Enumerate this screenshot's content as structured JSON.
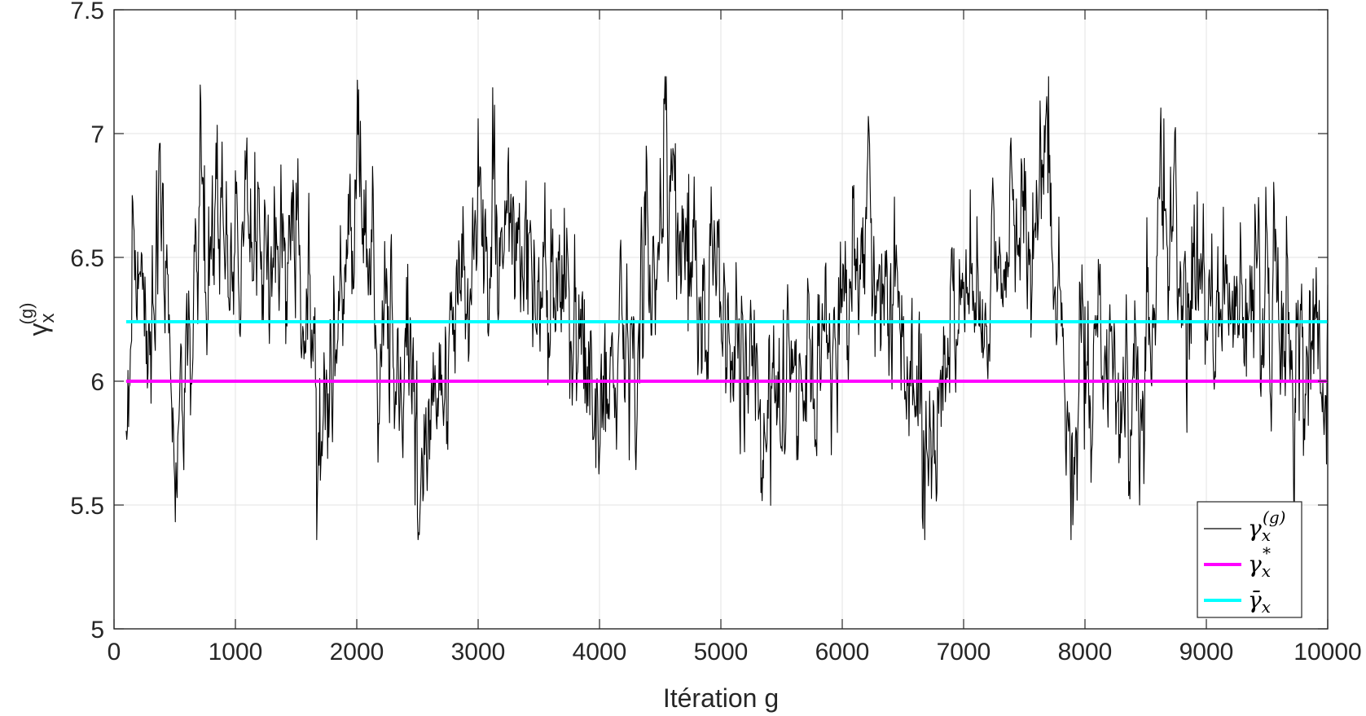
{
  "chart_data": {
    "type": "line",
    "title": "",
    "xlabel": "Itération g",
    "ylabel": "γ",
    "ylabel_sub": "x",
    "ylabel_sup": "(g)",
    "xlim": [
      0,
      10000
    ],
    "ylim": [
      5,
      7.5
    ],
    "x_ticks": [
      "0",
      "1000",
      "2000",
      "3000",
      "4000",
      "5000",
      "6000",
      "7000",
      "8000",
      "9000",
      "10000"
    ],
    "y_ticks": [
      "5",
      "5.5",
      "6",
      "6.5",
      "7",
      "7.5"
    ],
    "grid": true,
    "legend_position": "bottom-right",
    "series": [
      {
        "name": "γ",
        "legend_sub": "x",
        "legend_sup": "(g)",
        "color": "#000000",
        "style": "trace",
        "x_range": [
          100,
          10000
        ],
        "x_key": [
          100,
          150,
          300,
          350,
          500,
          520,
          700,
          1000,
          1500,
          1700,
          2000,
          2030,
          2480,
          2500,
          2950,
          3000,
          3500,
          4000,
          4500,
          4530,
          5000,
          5330,
          6000,
          6220,
          6660,
          6680,
          7000,
          7500,
          7700,
          7720,
          7880,
          7900,
          8000,
          8450,
          8650,
          9000,
          9500,
          9800,
          10000
        ],
        "y_key": [
          5.8,
          6.75,
          6.2,
          6.85,
          5.6,
          5.53,
          6.7,
          6.85,
          6.8,
          5.6,
          6.9,
          7.05,
          5.5,
          5.45,
          6.5,
          7.06,
          6.5,
          5.7,
          6.9,
          7.14,
          6.3,
          5.55,
          6.3,
          7.02,
          5.45,
          5.36,
          6.4,
          6.9,
          7.23,
          6.8,
          5.6,
          5.42,
          6.3,
          5.5,
          7.06,
          6.2,
          6.6,
          5.7,
          6.39
        ]
      },
      {
        "name": "γ",
        "legend_sub": "x",
        "legend_sup": "*",
        "color": "#ff00ff",
        "style": "constant",
        "x": [
          100,
          10000
        ],
        "y": [
          6.0,
          6.0
        ]
      },
      {
        "name": "γ̄",
        "legend_sub": "x",
        "legend_sup": "",
        "color": "#00ffff",
        "style": "constant",
        "x": [
          100,
          10000
        ],
        "y": [
          6.24,
          6.24
        ]
      }
    ]
  }
}
